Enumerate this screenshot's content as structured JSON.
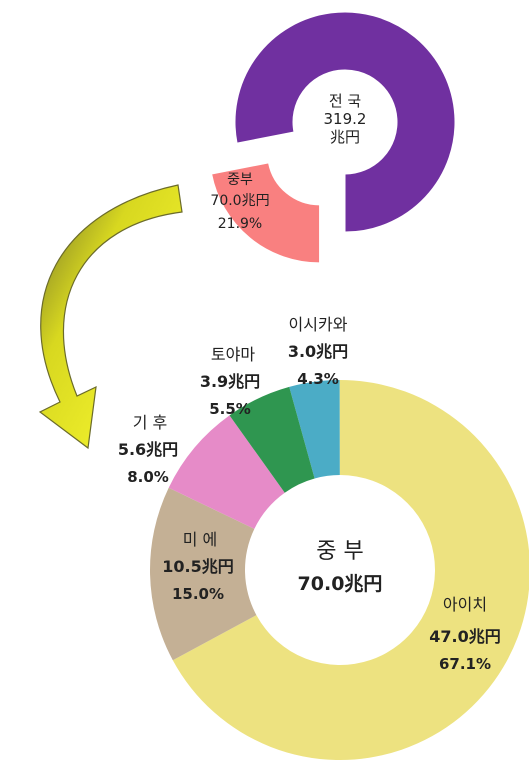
{
  "chart_data": [
    {
      "type": "pie",
      "variant": "donut",
      "center_label": [
        "전 국",
        "319.2",
        "兆円"
      ],
      "slices": [
        {
          "name": "중부",
          "value": 70.0,
          "unit": "兆円",
          "percent": "21.9%",
          "color": "#f98080",
          "exploded": true
        },
        {
          "name": "",
          "value": 249.2,
          "color": "#7030a0"
        }
      ]
    },
    {
      "type": "pie",
      "variant": "donut",
      "center_label": [
        "중 부",
        "70.0兆円"
      ],
      "slices": [
        {
          "name": "이시카와",
          "value": 3.0,
          "unit": "兆円",
          "percent": "4.3%",
          "color": "#4bacc6"
        },
        {
          "name": "아이치",
          "value": 47.0,
          "unit": "兆円",
          "percent": "67.1%",
          "color": "#ede280"
        },
        {
          "name": "미 에",
          "value": 10.5,
          "unit": "兆円",
          "percent": "15.0%",
          "color": "#c4b095"
        },
        {
          "name": "기 후",
          "value": 5.6,
          "unit": "兆円",
          "percent": "8.0%",
          "color": "#e68bc8"
        },
        {
          "name": "토야마",
          "value": 3.9,
          "unit": "兆円",
          "percent": "5.5%",
          "color": "#2f9650"
        }
      ]
    }
  ],
  "labels": {
    "top": {
      "center": [
        "전 국",
        "319.2",
        "兆円"
      ],
      "chubu": [
        "중부",
        "70.0兆円",
        "21.9%"
      ]
    },
    "bottom": {
      "center": [
        "중 부",
        "70.0兆円"
      ],
      "ishikawa": [
        "이시카와",
        "3.0兆円",
        "4.3%"
      ],
      "toyama": [
        "토야마",
        "3.9兆円",
        "5.5%"
      ],
      "gifu": [
        "기 후",
        "5.6兆円",
        "8.0%"
      ],
      "mie": [
        "미 에",
        "10.5兆円",
        "15.0%"
      ],
      "aichi": [
        "아이치",
        "47.0兆円",
        "67.1%"
      ]
    }
  },
  "colors": {
    "arrow_fill": "#ffff33",
    "arrow_stroke": "#6b6b2a"
  }
}
